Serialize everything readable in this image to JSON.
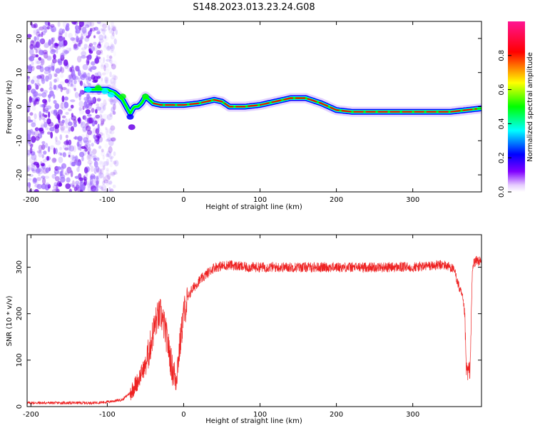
{
  "title": "S148.2023.013.23.24.G08",
  "chart_data": [
    {
      "type": "heatmap",
      "title": "",
      "xlabel": "Height of straight line (km)",
      "ylabel": "Frequency (Hz)",
      "xlim": [
        -205,
        390
      ],
      "ylim": [
        -25,
        25
      ],
      "x_ticks": [
        -200,
        -100,
        0,
        100,
        200,
        300
      ],
      "y_ticks": [
        -20,
        -10,
        0,
        10,
        20
      ],
      "colorbar": {
        "label": "Normalized spectral amplitude",
        "range": [
          0,
          1
        ],
        "ticks": [
          0.0,
          0.2,
          0.4,
          0.6,
          0.8
        ],
        "colors": [
          "#ffffff",
          "#8000ff",
          "#0000ff",
          "#00ffff",
          "#00ff00",
          "#ffff00",
          "#ff0000",
          "#ff1493"
        ]
      },
      "ridge": {
        "x": [
          -130,
          -120,
          -110,
          -100,
          -90,
          -80,
          -75,
          -70,
          -65,
          -60,
          -55,
          -50,
          -45,
          -40,
          -30,
          -20,
          -10,
          0,
          20,
          40,
          50,
          60,
          80,
          100,
          120,
          140,
          160,
          180,
          190,
          200,
          220,
          250,
          300,
          350,
          370,
          390
        ],
        "freq": [
          5,
          5,
          5,
          5,
          4,
          2,
          0,
          -2,
          0,
          0,
          1,
          3,
          2,
          1,
          0.5,
          0.5,
          0.5,
          0.5,
          1,
          2,
          1.5,
          0,
          0,
          0.5,
          1.5,
          2.5,
          2.5,
          1,
          0,
          -1,
          -1.5,
          -1.5,
          -1.5,
          -1.5,
          -1,
          -0.5
        ]
      },
      "noise_region": [
        -205,
        -100
      ]
    },
    {
      "type": "line",
      "title": "",
      "xlabel": "Height of straight line (km)",
      "ylabel": "SNR (10 * v/v)",
      "xlim": [
        -205,
        390
      ],
      "ylim": [
        0,
        370
      ],
      "x_ticks": [
        -200,
        -100,
        0,
        100,
        200,
        300
      ],
      "y_ticks": [
        0,
        100,
        200,
        300
      ],
      "color": "#ee2222",
      "series": [
        {
          "x": [
            -205,
            -180,
            -150,
            -120,
            -100,
            -80,
            -70,
            -60,
            -50,
            -45,
            -40,
            -35,
            -30,
            -25,
            -20,
            -15,
            -10,
            -5,
            0,
            5,
            10,
            20,
            30,
            40,
            60,
            80,
            100,
            150,
            200,
            250,
            300,
            340,
            350,
            355,
            360,
            365,
            368,
            370,
            372,
            375,
            378,
            380,
            385,
            390
          ],
          "y": [
            8,
            8,
            8,
            8,
            10,
            15,
            30,
            55,
            90,
            120,
            160,
            190,
            200,
            170,
            130,
            80,
            60,
            130,
            200,
            230,
            250,
            270,
            285,
            300,
            305,
            300,
            300,
            300,
            300,
            300,
            300,
            305,
            300,
            290,
            260,
            235,
            200,
            80,
            75,
            80,
            290,
            310,
            315,
            310
          ]
        }
      ]
    }
  ]
}
